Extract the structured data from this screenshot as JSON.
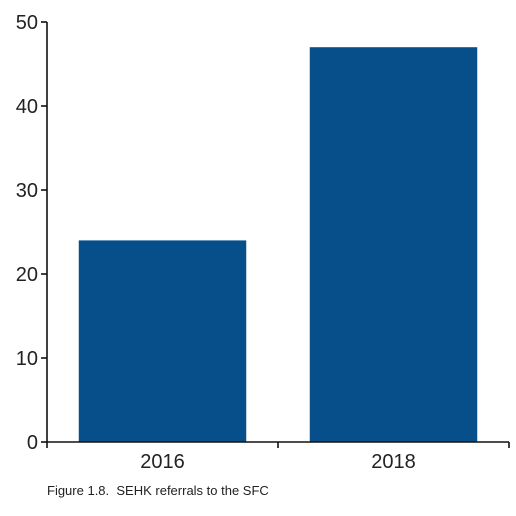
{
  "caption": "Figure 1.8.  SEHK referrals to the SFC",
  "chart_data": {
    "type": "bar",
    "title": "",
    "xlabel": "",
    "ylabel": "",
    "categories": [
      "2016",
      "2018"
    ],
    "values": [
      24,
      47
    ],
    "ylim": [
      0,
      50
    ],
    "yticks": [
      0,
      10,
      20,
      30,
      40,
      50
    ],
    "grid": false,
    "bar_color": "#064F8A",
    "axis_color": "#111111"
  }
}
